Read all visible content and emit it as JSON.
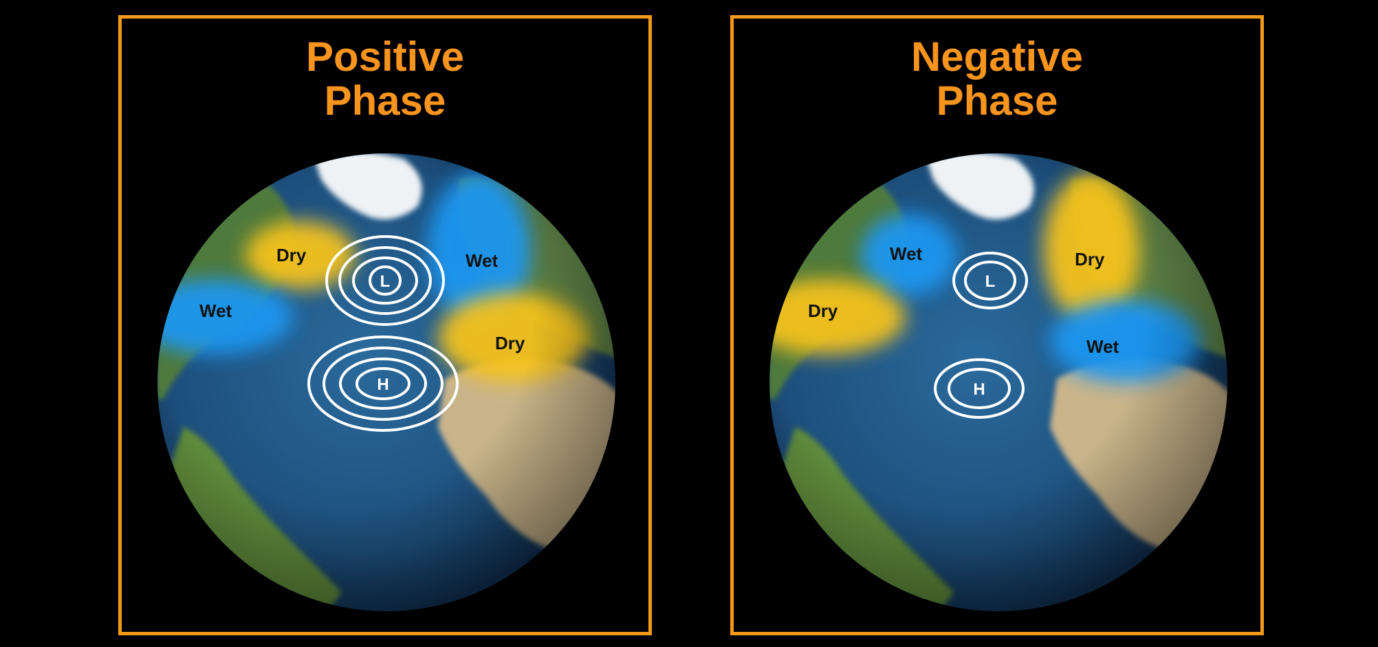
{
  "panels": [
    {
      "title_line1": "Positive",
      "title_line2": "Phase",
      "labels": {
        "north_america": "Dry",
        "greenland_east": "Wet",
        "us_east": "Wet",
        "southern_europe": "Dry"
      },
      "low": "L",
      "high": "H"
    },
    {
      "title_line1": "Negative",
      "title_line2": "Phase",
      "labels": {
        "north_america": "Wet",
        "greenland_east": "Dry",
        "us_east": "Dry",
        "southern_europe": "Wet"
      },
      "low": "L",
      "high": "H"
    }
  ],
  "colors": {
    "frame": "#f39a1a",
    "title": "#f7941d",
    "wet": "#1e96f0",
    "dry": "#f5c21e",
    "ocean": "#1f4f7a",
    "contour": "#ffffff"
  }
}
